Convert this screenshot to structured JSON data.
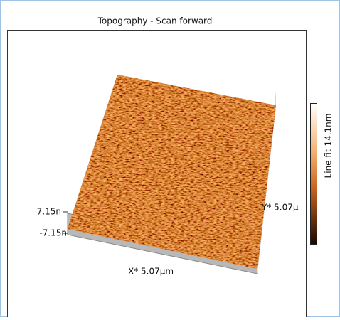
{
  "window": {
    "title": "Topography - Scan forward"
  },
  "plot": {
    "z_max_label": "7.15n",
    "z_min_label": "-7.15n",
    "x_label": "X* 5.07µm",
    "y_label": "Y* 5.07µ",
    "colorbar_label": "Line fit 14.1nm"
  }
}
